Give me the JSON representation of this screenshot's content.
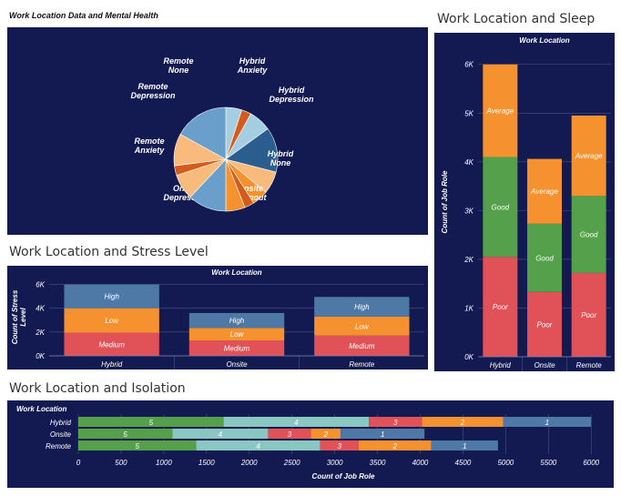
{
  "dashboard": {
    "pie_title": "Work Location Data and Mental Health",
    "stress_title": "Work Location and Stress Level",
    "sleep_title": "Work Location and Sleep",
    "isolation_title": "Work Location and Isolation"
  },
  "colors": {
    "background": "#131a52",
    "blue_light": "#a6cee3",
    "blue_mid": "#6a9fcb",
    "blue_dark": "#2c5d8f",
    "orange": "#f5922f",
    "orange_light": "#f9bb7c",
    "orange_dark": "#d55b1c",
    "red": "#e05158",
    "green": "#55a04b",
    "teal": "#89c8c2",
    "steel": "#4e79a7"
  },
  "chart_data": [
    {
      "id": "pie",
      "type": "pie",
      "title": "Work Location Data and Mental Health",
      "slices": [
        {
          "label": "Hybrid Anxiety",
          "value": 5,
          "color": "#a6cee3"
        },
        {
          "label": "",
          "value": 3,
          "color": "#d55b1c"
        },
        {
          "label": "Hybrid Depression",
          "value": 7,
          "color": "#a6cee3"
        },
        {
          "label": "Hybrid None",
          "value": 14,
          "color": "#2c5d8f"
        },
        {
          "label": "",
          "value": 7,
          "color": "#f9bb7c"
        },
        {
          "label": "Onsite Burnout",
          "value": 5,
          "color": "#f5922f"
        },
        {
          "label": "",
          "value": 3,
          "color": "#d55b1c"
        },
        {
          "label": "Onsite Depression",
          "value": 6,
          "color": "#f5922f"
        },
        {
          "label": "",
          "value": 12,
          "color": "#6a9fcb"
        },
        {
          "label": "Remote Anxiety",
          "value": 8,
          "color": "#f9bb7c"
        },
        {
          "label": "",
          "value": 3,
          "color": "#d55b1c"
        },
        {
          "label": "Remote Depression",
          "value": 10,
          "color": "#f9bb7c"
        },
        {
          "label": "Remote None",
          "value": 17,
          "color": "#6a9fcb"
        }
      ]
    },
    {
      "id": "stress",
      "type": "bar",
      "title": "Work Location and Stress Level",
      "header": "Work Location",
      "categories": [
        "Hybrid",
        "Onsite",
        "Remote"
      ],
      "ylabel": "Count of Stress Level",
      "yticks": [
        "0K",
        "2K",
        "4K",
        "6K"
      ],
      "ylim": [
        0,
        6500
      ],
      "series": [
        {
          "name": "Medium",
          "values": [
            1950,
            1300,
            1700
          ],
          "color": "#e05158"
        },
        {
          "name": "Low",
          "values": [
            2050,
            1050,
            1600
          ],
          "color": "#f5922f"
        },
        {
          "name": "High",
          "values": [
            2000,
            1250,
            1650
          ],
          "color": "#4e79a7"
        }
      ]
    },
    {
      "id": "sleep",
      "type": "bar",
      "title": "Work Location and Sleep",
      "header": "Work Location",
      "categories": [
        "Hybrid",
        "Onsite",
        "Remote"
      ],
      "ylabel": "Count of Job Role",
      "yticks": [
        "0K",
        "1K",
        "2K",
        "3K",
        "4K",
        "5K",
        "6K"
      ],
      "ylim": [
        0,
        6350
      ],
      "series": [
        {
          "name": "Poor",
          "values": [
            2050,
            1330,
            1720
          ],
          "color": "#e05158"
        },
        {
          "name": "Good",
          "values": [
            2050,
            1400,
            1580
          ],
          "color": "#55a04b"
        },
        {
          "name": "Average",
          "values": [
            1900,
            1330,
            1650
          ],
          "color": "#f5922f"
        }
      ]
    },
    {
      "id": "isolation",
      "type": "bar",
      "orientation": "horizontal",
      "title": "Work Location and Isolation",
      "header": "Work Location",
      "categories": [
        "Hybrid",
        "Onsite",
        "Remote"
      ],
      "xlabel": "Count of Job Role",
      "xticks": [
        0,
        500,
        1000,
        1500,
        2000,
        2500,
        3000,
        3500,
        4000,
        4500,
        5000,
        5500,
        6000
      ],
      "xlim": [
        0,
        6200
      ],
      "series": [
        {
          "name": "5",
          "values": [
            1700,
            1100,
            1380
          ],
          "color": "#55a04b"
        },
        {
          "name": "4",
          "values": [
            1700,
            1120,
            1450
          ],
          "color": "#89c8c2"
        },
        {
          "name": "3",
          "values": [
            620,
            500,
            450
          ],
          "color": "#e05158"
        },
        {
          "name": "2",
          "values": [
            950,
            350,
            850
          ],
          "color": "#f5922f"
        },
        {
          "name": "1",
          "values": [
            1030,
            980,
            780
          ],
          "color": "#4e79a7"
        }
      ]
    }
  ]
}
